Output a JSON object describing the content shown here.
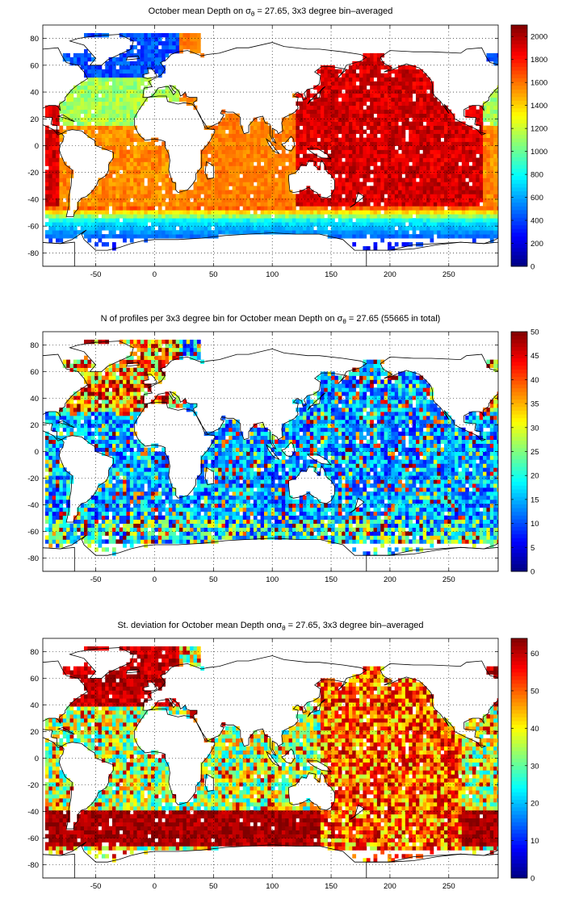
{
  "chart_data": [
    {
      "type": "heatmap",
      "title_prefix": "October mean Depth on ",
      "title_sigma": "σ",
      "title_subscript": "θ",
      "title_suffix": " = 27.65, 3x3 degree bin–averaged",
      "xlim": [
        -95,
        292
      ],
      "ylim": [
        -90,
        90
      ],
      "xticks": [
        -50,
        0,
        50,
        100,
        150,
        200,
        250
      ],
      "yticks": [
        -80,
        -60,
        -40,
        -20,
        0,
        20,
        40,
        60,
        80
      ],
      "colorbar_ticks": [
        0,
        200,
        400,
        600,
        800,
        1000,
        1200,
        1400,
        1600,
        1800,
        2000
      ],
      "clim": [
        0,
        2100
      ],
      "colormap": "jet",
      "grid": "dotted",
      "bin_size_deg": 3
    },
    {
      "type": "heatmap",
      "title_prefix": "N of profiles per 3x3 degree bin for October mean Depth on ",
      "title_sigma": "σ",
      "title_subscript": "θ",
      "title_suffix": " = 27.65 (55665 in total)",
      "xlim": [
        -95,
        292
      ],
      "ylim": [
        -90,
        90
      ],
      "xticks": [
        -50,
        0,
        50,
        100,
        150,
        200,
        250
      ],
      "yticks": [
        -80,
        -60,
        -40,
        -20,
        0,
        20,
        40,
        60,
        80
      ],
      "colorbar_ticks": [
        0,
        5,
        10,
        15,
        20,
        25,
        30,
        35,
        40,
        45,
        50
      ],
      "clim": [
        0,
        50
      ],
      "colormap": "jet",
      "grid": "dotted",
      "bin_size_deg": 3
    },
    {
      "type": "heatmap",
      "title_prefix": "St. deviation for October mean Depth on",
      "title_sigma": "σ",
      "title_subscript": "θ",
      "title_suffix": " = 27.65, 3x3 degree bin–averaged",
      "xlim": [
        -95,
        292
      ],
      "ylim": [
        -90,
        90
      ],
      "xticks": [
        -50,
        0,
        50,
        100,
        150,
        200,
        250
      ],
      "yticks": [
        -80,
        -60,
        -40,
        -20,
        0,
        20,
        40,
        60,
        80
      ],
      "colorbar_ticks": [
        0,
        10,
        20,
        30,
        40,
        50,
        60
      ],
      "clim": [
        0,
        64
      ],
      "colormap": "jet",
      "grid": "dotted",
      "bin_size_deg": 3
    }
  ]
}
